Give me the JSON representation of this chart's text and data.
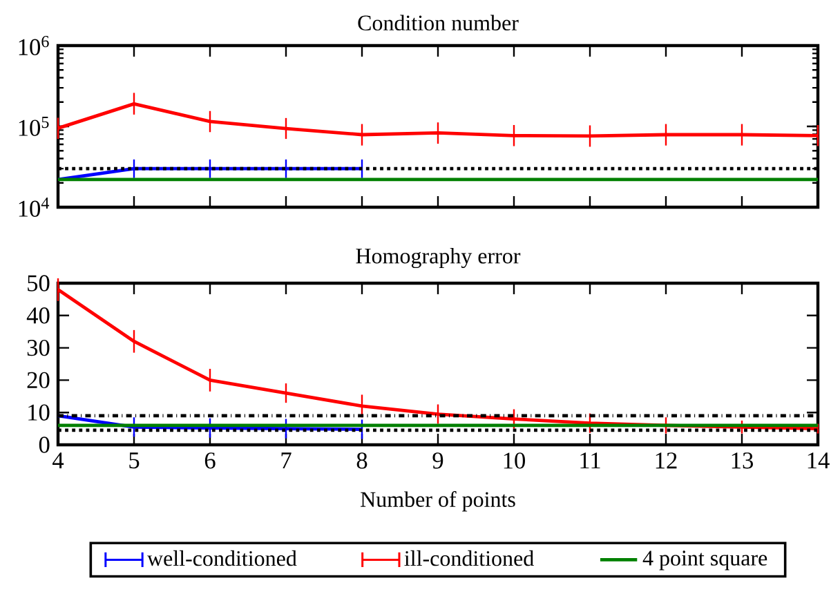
{
  "chart_data": [
    {
      "type": "line",
      "title": "Condition number",
      "log": "y",
      "tick_labels": "y",
      "xlim": [
        4,
        14
      ],
      "xticks": [
        4,
        5,
        6,
        7,
        8,
        9,
        10,
        11,
        12,
        13,
        14
      ],
      "ylim": [
        10000,
        1000000
      ],
      "yticks": [
        {
          "value": 10000,
          "label": "10$^{4}$"
        },
        {
          "value": 100000,
          "label": "10$^{5}$"
        },
        {
          "value": 1000000,
          "label": "10$^{6}$"
        }
      ],
      "x": [
        4,
        5,
        6,
        7,
        8,
        9,
        10,
        11,
        12,
        13,
        14
      ],
      "series": [
        {
          "color": "#0000ff",
          "x": [
            4,
            5,
            6,
            7,
            8
          ],
          "values": [
            22000,
            30000,
            30000,
            30000,
            30000
          ],
          "errors": [
            null,
            [
              23000,
              39000
            ],
            [
              23000,
              39000
            ],
            [
              23000,
              39000
            ],
            [
              23000,
              39000
            ]
          ]
        },
        {
          "color": "#ff0000",
          "values": [
            95000,
            190000,
            115000,
            94000,
            79000,
            83000,
            77000,
            76000,
            79000,
            79000,
            77000
          ],
          "errors": [
            [
              70000,
              128000
            ],
            [
              140000,
              260000
            ],
            [
              85000,
              155000
            ],
            [
              70000,
              127000
            ],
            [
              58000,
              107000
            ],
            [
              61000,
              112000
            ],
            [
              57000,
              104000
            ],
            [
              56000,
              103000
            ],
            [
              58000,
              107000
            ],
            [
              58000,
              107000
            ],
            [
              57000,
              104000
            ]
          ]
        },
        {
          "color": "#008000",
          "values": [
            22000,
            22000,
            22000,
            22000,
            22000,
            22000,
            22000,
            22000,
            22000,
            22000,
            22000
          ]
        }
      ],
      "ref_lines": [
        {
          "axis": "y",
          "value": 30000,
          "color": "#000000",
          "line_style": "dotted"
        }
      ]
    },
    {
      "type": "line",
      "title": "Homography error",
      "xlabel": "Number of points",
      "legend": "bottom",
      "xlim": [
        4,
        14
      ],
      "xticks": [
        4,
        5,
        6,
        7,
        8,
        9,
        10,
        11,
        12,
        13,
        14
      ],
      "ylim": [
        0,
        50
      ],
      "yticks": [
        0,
        10,
        20,
        30,
        40,
        50
      ],
      "x": [
        4,
        5,
        6,
        7,
        8,
        9,
        10,
        11,
        12,
        13,
        14
      ],
      "series": [
        {
          "name": "well-conditioned",
          "color": "#0000ff",
          "x": [
            4,
            5,
            6,
            7,
            8
          ],
          "values": [
            9,
            5.5,
            5.2,
            5,
            4.8
          ],
          "errors": [
            null,
            3,
            3,
            3,
            3
          ]
        },
        {
          "name": "ill-conditioned",
          "color": "#ff0000",
          "values": [
            48,
            32,
            20,
            16,
            12,
            9.5,
            8,
            6.7,
            6,
            5.5,
            5
          ],
          "errors": [
            3.5,
            3.5,
            3.5,
            3,
            3.5,
            3,
            3,
            3,
            2.5,
            2,
            1.5
          ]
        },
        {
          "name": "4 point square",
          "color": "#008000",
          "values": [
            6,
            6,
            6,
            6,
            6,
            6,
            6,
            6,
            6,
            6,
            6
          ]
        }
      ],
      "ref_lines": [
        {
          "axis": "y",
          "value": 9,
          "color": "#000000",
          "line_style": "dashdot"
        },
        {
          "axis": "y",
          "value": 4.5,
          "color": "#000000",
          "line_style": "dotted"
        }
      ]
    }
  ]
}
